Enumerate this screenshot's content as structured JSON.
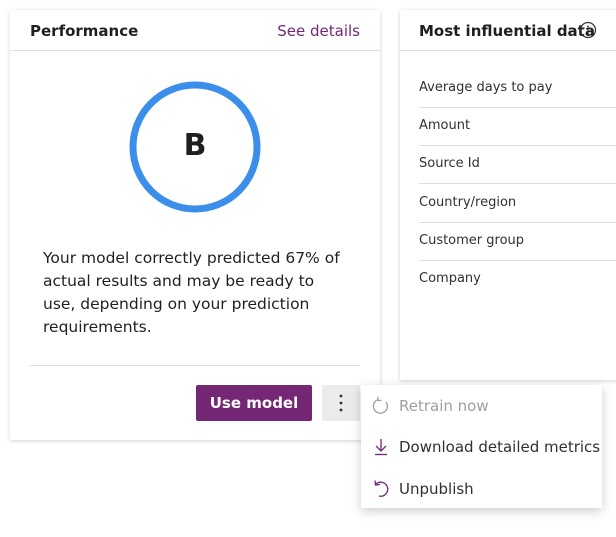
{
  "performance": {
    "title": "Performance",
    "link": "See details",
    "grade": "B",
    "description": "Your model correctly predicted 67% of actual results and may be ready to use, depending on your prediction requirements.",
    "primary_button": "Use model"
  },
  "influential": {
    "title": "Most influential data",
    "features": [
      "Average days to pay",
      "Amount",
      "Source Id",
      "Country/region",
      "Customer group",
      "Company"
    ]
  },
  "menu": {
    "items": [
      "Retrain now",
      "Download detailed metrics",
      "Unpublish"
    ]
  }
}
